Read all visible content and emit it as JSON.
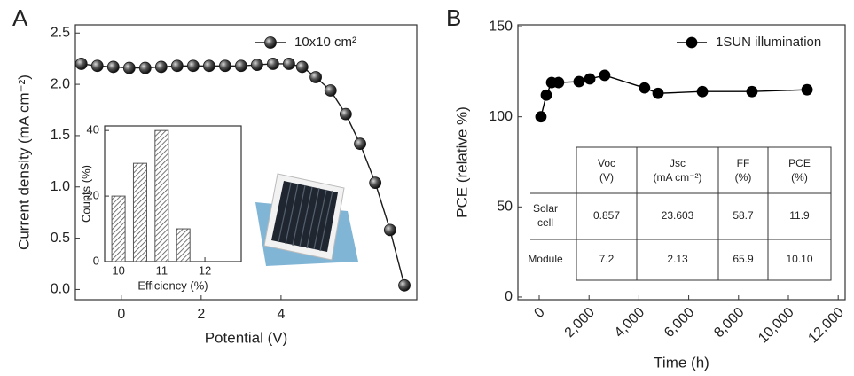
{
  "chart_data": [
    {
      "type": "line",
      "panel_label": "A",
      "xlabel": "Potential (V)",
      "ylabel": "Current density (mA cm⁻²)",
      "x": [
        -1.0,
        -0.6,
        -0.2,
        0.2,
        0.6,
        1.0,
        1.4,
        1.8,
        2.2,
        2.6,
        3.0,
        3.4,
        3.8,
        4.2,
        4.53,
        4.87,
        5.24,
        5.62,
        5.98,
        6.36,
        6.73,
        7.09
      ],
      "series": [
        {
          "name": "10x10 cm²",
          "color": "#1a1a1a",
          "values": [
            2.2,
            2.18,
            2.17,
            2.16,
            2.16,
            2.17,
            2.18,
            2.18,
            2.18,
            2.18,
            2.18,
            2.19,
            2.2,
            2.2,
            2.17,
            2.07,
            1.94,
            1.71,
            1.42,
            1.04,
            0.58,
            0.04
          ]
        }
      ],
      "xlim": [
        -1.15,
        7.4
      ],
      "ylim": [
        -0.1,
        2.58
      ],
      "xticks": [
        0,
        2,
        4
      ],
      "yticks": [
        {
          "value": 0,
          "label": "0.0"
        },
        0.5,
        {
          "value": 1,
          "label": "1.0"
        },
        1.5,
        {
          "value": 2,
          "label": "2.0"
        },
        2.5
      ],
      "legend": "upper right",
      "marker": "sphere"
    },
    {
      "type": "bar",
      "xlabel": "Efficiency (%)",
      "ylabel": "Counts (%)",
      "x": [
        10,
        10.5,
        11,
        11.5
      ],
      "values": [
        20,
        30,
        40,
        10
      ],
      "color": "#555555",
      "hatch": true,
      "xlim": [
        9.68,
        12.84
      ],
      "ylim": [
        0,
        41.4
      ],
      "xticks": [
        10,
        11,
        12
      ],
      "yticks": [
        0,
        20,
        40
      ]
    },
    {
      "type": "line",
      "panel_label": "B",
      "xlabel": "Time (h)",
      "ylabel": "PCE (relative %)",
      "x": [
        70,
        285,
        500,
        780,
        1600,
        2030,
        2630,
        4230,
        4770,
        6550,
        8540,
        10750
      ],
      "series": [
        {
          "name": "1SUN illumination",
          "color": "#000000",
          "values": [
            100,
            112,
            119,
            119,
            119.5,
            121,
            123,
            116,
            113,
            114,
            114,
            115
          ]
        }
      ],
      "xlim": [
        -854,
        12278
      ],
      "ylim": [
        -1.5,
        151
      ],
      "xticks": [
        0,
        {
          "value": 2000,
          "label": "2,000"
        },
        {
          "value": 4000,
          "label": "4,000"
        },
        {
          "value": 6000,
          "label": "6,000"
        },
        {
          "value": 8000,
          "label": "8,000"
        },
        {
          "value": 10000,
          "label": "10,000"
        },
        {
          "value": 12000,
          "label": "12,000"
        }
      ],
      "yticks": [
        0,
        50,
        100,
        150
      ],
      "legend": "upper right",
      "marker": "dot"
    }
  ],
  "table": {
    "header": [
      [
        "Voc",
        "(V)"
      ],
      [
        "Jsc",
        "(mA cm⁻²)"
      ],
      [
        "FF",
        "(%)"
      ],
      [
        "PCE",
        "(%)"
      ]
    ],
    "rows": [
      {
        "label": [
          "Solar",
          "cell"
        ],
        "cells": [
          "0.857",
          "23.603",
          "58.7",
          "11.9"
        ]
      },
      {
        "label": [
          "Module"
        ],
        "cells": [
          "7.2",
          "2.13",
          "65.9",
          "10.10"
        ]
      }
    ]
  }
}
